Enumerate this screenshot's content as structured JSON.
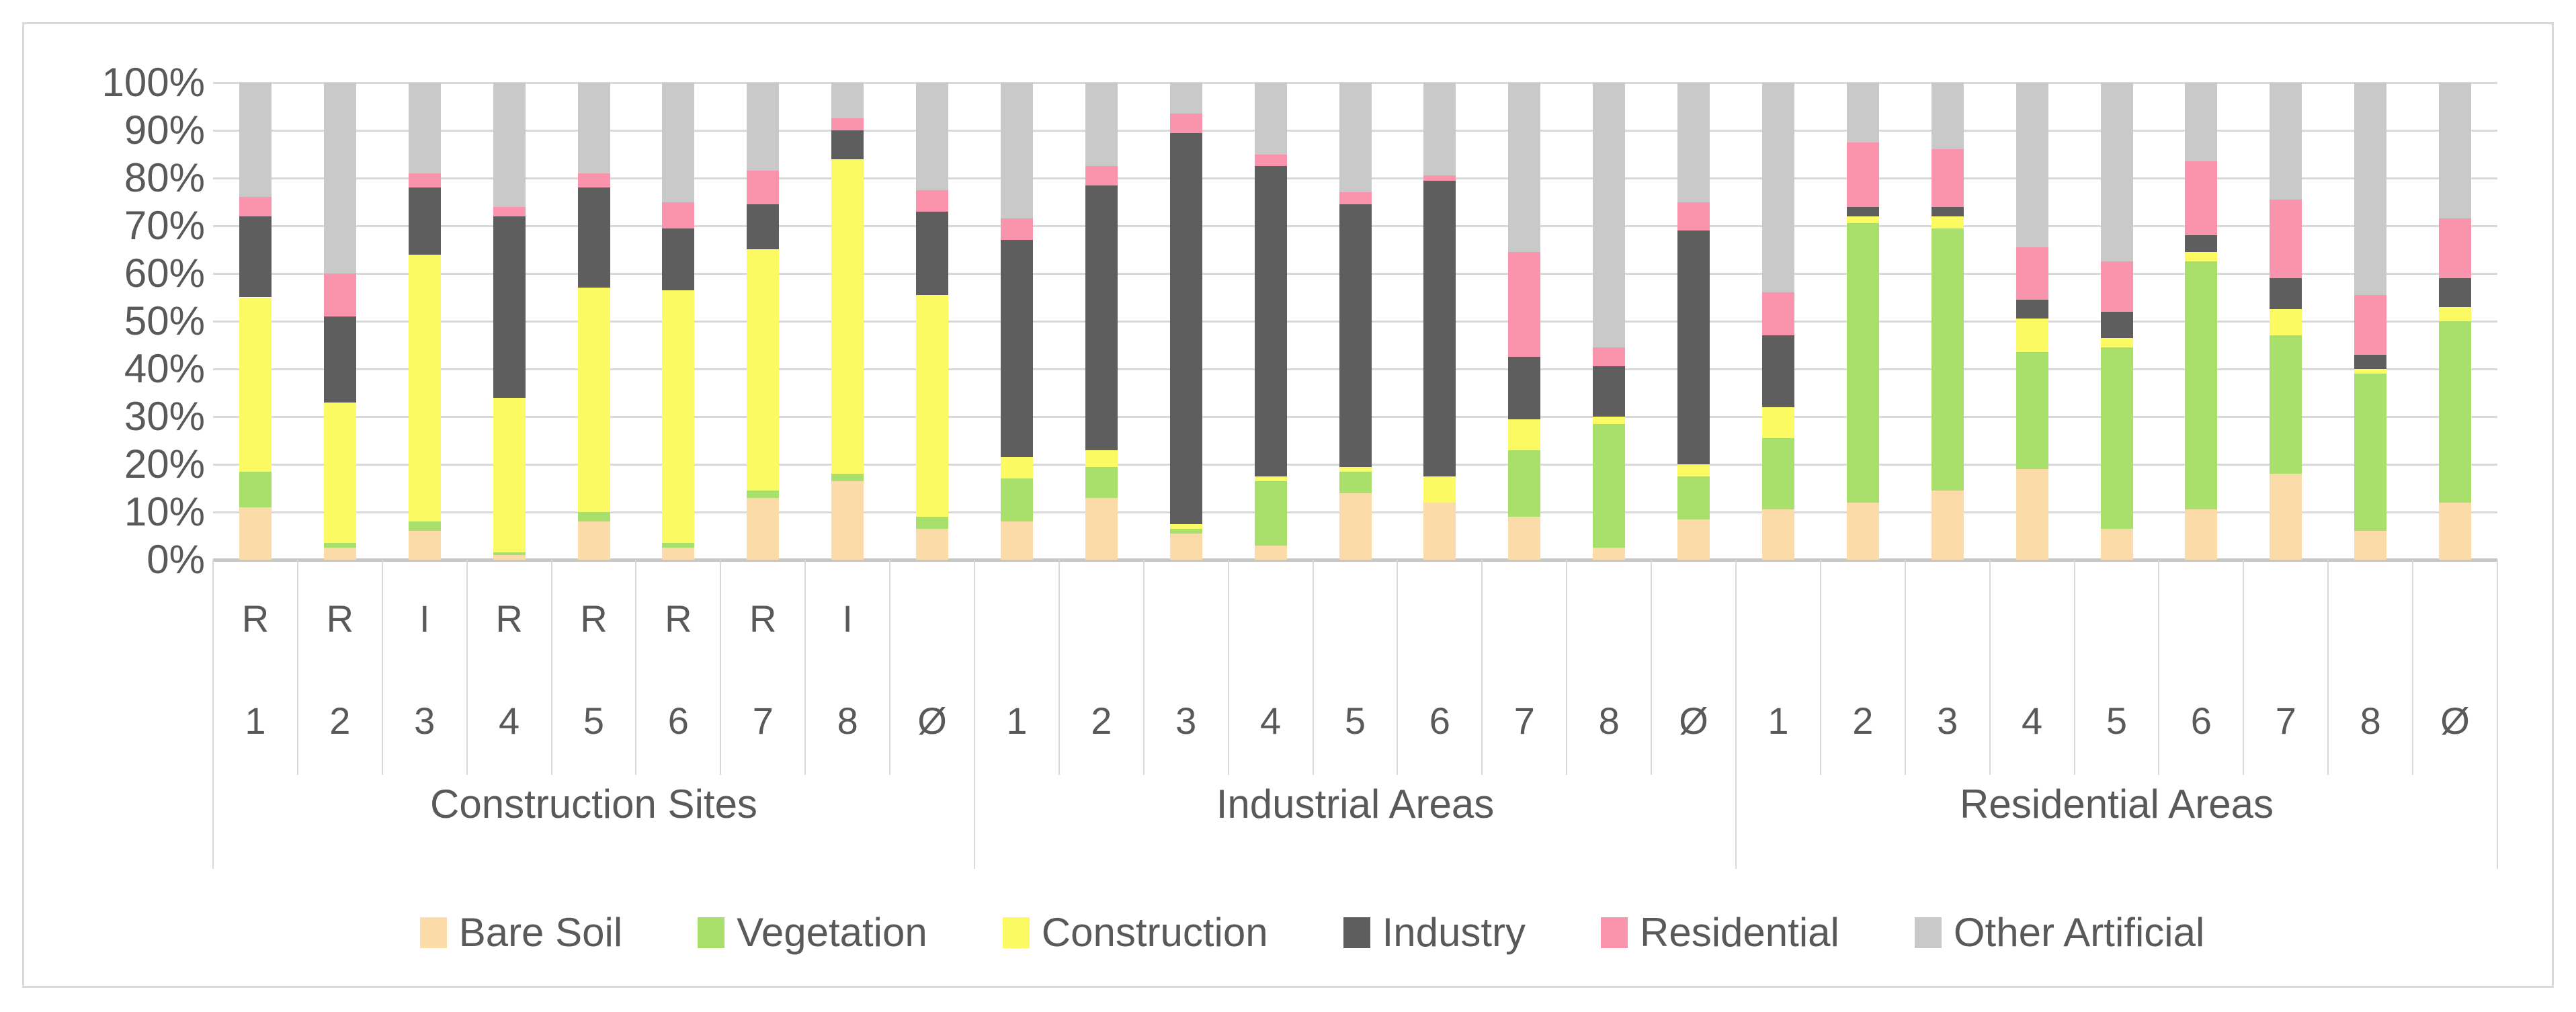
{
  "chart_data": {
    "type": "bar",
    "variant": "100%-stacked-column",
    "title": "",
    "xlabel": "",
    "ylabel": "",
    "grid": true,
    "legend_position": "bottom",
    "y_axis": {
      "min": 0,
      "max": 100,
      "step": 10,
      "tick_labels": [
        "0%",
        "10%",
        "20%",
        "30%",
        "40%",
        "50%",
        "60%",
        "70%",
        "80%",
        "90%",
        "100%"
      ]
    },
    "series_order": [
      "Bare Soil",
      "Vegetation",
      "Construction",
      "Industry",
      "Residential",
      "Other Artificial"
    ],
    "series_colors": {
      "Bare Soil": "#fbdca8",
      "Vegetation": "#a9e06c",
      "Construction": "#fcfa62",
      "Industry": "#5e5e5e",
      "Residential": "#fa93ac",
      "Other Artificial": "#c9c9c9"
    },
    "groups": [
      {
        "label": "Construction Sites",
        "bars": [
          {
            "number": "1",
            "letter": "R",
            "values": [
              11,
              7.5,
              36.5,
              17,
              4,
              24
            ]
          },
          {
            "number": "2",
            "letter": "R",
            "values": [
              2.5,
              1,
              29.5,
              18,
              9,
              40
            ]
          },
          {
            "number": "3",
            "letter": "I",
            "values": [
              6,
              2,
              56,
              14,
              3,
              19
            ]
          },
          {
            "number": "4",
            "letter": "R",
            "values": [
              1,
              0.5,
              32.5,
              38,
              2,
              26
            ]
          },
          {
            "number": "5",
            "letter": "R",
            "values": [
              8,
              2,
              47,
              21,
              3,
              19
            ]
          },
          {
            "number": "6",
            "letter": "R",
            "values": [
              2.5,
              1,
              53,
              13,
              5.5,
              25
            ]
          },
          {
            "number": "7",
            "letter": "R",
            "values": [
              13,
              1.5,
              50.5,
              9.5,
              7,
              18.5
            ]
          },
          {
            "number": "8",
            "letter": "I",
            "values": [
              16.5,
              1.5,
              66,
              6,
              2.5,
              7.5
            ]
          },
          {
            "number": "Ø",
            "letter": "",
            "values": [
              6.5,
              2.5,
              46.5,
              17.5,
              4.5,
              22.5
            ]
          }
        ]
      },
      {
        "label": "Industrial Areas",
        "bars": [
          {
            "number": "1",
            "letter": "",
            "values": [
              8,
              9,
              4.5,
              45.5,
              4.5,
              28.5
            ]
          },
          {
            "number": "2",
            "letter": "",
            "values": [
              13,
              6.5,
              3.5,
              55.5,
              4,
              17.5
            ]
          },
          {
            "number": "3",
            "letter": "",
            "values": [
              5.5,
              1,
              1,
              82,
              4,
              6.5
            ]
          },
          {
            "number": "4",
            "letter": "",
            "values": [
              3,
              13.5,
              1,
              65,
              2.5,
              15
            ]
          },
          {
            "number": "5",
            "letter": "",
            "values": [
              14,
              4.5,
              1,
              55,
              2.5,
              23
            ]
          },
          {
            "number": "6",
            "letter": "",
            "values": [
              12,
              0,
              5.5,
              62,
              1,
              19.5
            ]
          },
          {
            "number": "7",
            "letter": "",
            "values": [
              9,
              14,
              6.5,
              13,
              22,
              35.5
            ]
          },
          {
            "number": "8",
            "letter": "",
            "values": [
              2.5,
              26,
              1.5,
              10.5,
              4,
              55.5
            ]
          },
          {
            "number": "Ø",
            "letter": "",
            "values": [
              8.5,
              9,
              2.5,
              49,
              6,
              25
            ]
          }
        ]
      },
      {
        "label": "Residential Areas",
        "bars": [
          {
            "number": "1",
            "letter": "",
            "values": [
              10.5,
              15,
              6.5,
              15,
              9,
              44
            ]
          },
          {
            "number": "2",
            "letter": "",
            "values": [
              12,
              58.5,
              1.5,
              2,
              13.5,
              12.5
            ]
          },
          {
            "number": "3",
            "letter": "",
            "values": [
              14.5,
              55,
              2.5,
              2,
              12,
              14
            ]
          },
          {
            "number": "4",
            "letter": "",
            "values": [
              19,
              24.5,
              7,
              4,
              11,
              34.5
            ]
          },
          {
            "number": "5",
            "letter": "",
            "values": [
              6.5,
              38,
              2,
              5.5,
              10.5,
              37.5
            ]
          },
          {
            "number": "6",
            "letter": "",
            "values": [
              10.5,
              52,
              2,
              3.5,
              15.5,
              16.5
            ]
          },
          {
            "number": "7",
            "letter": "",
            "values": [
              18,
              29,
              5.5,
              6.5,
              16.5,
              24.5
            ]
          },
          {
            "number": "8",
            "letter": "",
            "values": [
              6,
              33,
              1,
              3,
              12.5,
              44.5
            ]
          },
          {
            "number": "Ø",
            "letter": "",
            "values": [
              12,
              38,
              3,
              6,
              12.5,
              28.5
            ]
          }
        ]
      }
    ]
  },
  "legend": {
    "items": [
      {
        "label": "Bare Soil",
        "color": "#fbdca8"
      },
      {
        "label": "Vegetation",
        "color": "#a9e06c"
      },
      {
        "label": "Construction",
        "color": "#fcfa62"
      },
      {
        "label": "Industry",
        "color": "#5e5e5e"
      },
      {
        "label": "Residential",
        "color": "#fa93ac"
      },
      {
        "label": "Other Artificial",
        "color": "#c9c9c9"
      }
    ]
  },
  "colors": {
    "gridline": "#d9d9d9",
    "axis_line": "#c6c6c6",
    "separator": "#d9d9d9",
    "text": "#595959",
    "frame_border": "#d9d9d9",
    "background": "#ffffff"
  }
}
